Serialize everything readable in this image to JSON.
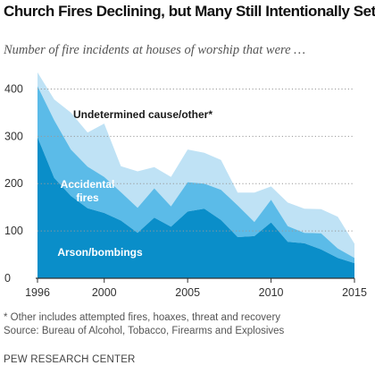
{
  "title": "Church Fires Declining, but Many Still Intentionally Set",
  "subtitle": "Number of fire incidents at houses of worship that were …",
  "note": "* Other includes attempted fires, hoaxes, threat and recovery",
  "source": "Source: Bureau of Alcohol, Tobacco, Firearms and Explosives",
  "credit": "PEW RESEARCH CENTER",
  "colors": {
    "arson": "#0a8ec9",
    "accidental": "#5bbbe8",
    "undetermined": "#bfe2f5",
    "gridline": "#999999",
    "baseline": "#333333",
    "label_dark": "#1a1a1a",
    "label_light": "#ffffff"
  },
  "chart_data": {
    "type": "area",
    "stacked": true,
    "x": [
      1996,
      1997,
      1998,
      1999,
      2000,
      2001,
      2002,
      2003,
      2004,
      2005,
      2006,
      2007,
      2008,
      2009,
      2010,
      2011,
      2012,
      2013,
      2014,
      2015
    ],
    "series": [
      {
        "name": "Arson/bombings",
        "values": [
          298,
          212,
          174,
          148,
          138,
          122,
          96,
          128,
          109,
          141,
          147,
          123,
          87,
          89,
          118,
          77,
          74,
          61,
          43,
          32
        ]
      },
      {
        "name": "Accidental fires",
        "values": [
          108,
          122,
          98,
          88,
          76,
          60,
          53,
          62,
          43,
          62,
          53,
          64,
          67,
          30,
          48,
          33,
          22,
          34,
          20,
          11
        ]
      },
      {
        "name": "Undetermined cause/other*",
        "values": [
          29,
          44,
          78,
          72,
          113,
          55,
          77,
          45,
          62,
          69,
          65,
          63,
          27,
          62,
          28,
          50,
          51,
          51,
          67,
          30
        ]
      }
    ],
    "x_ticks": [
      "1996",
      "2000",
      "2005",
      "2010",
      "2015"
    ],
    "y_ticks": [
      "0",
      "100",
      "200",
      "300",
      "400"
    ],
    "ylim": [
      0,
      450
    ],
    "xlim": [
      1996,
      2015
    ],
    "grid": "horizontal dotted",
    "legend": "inline labels"
  }
}
